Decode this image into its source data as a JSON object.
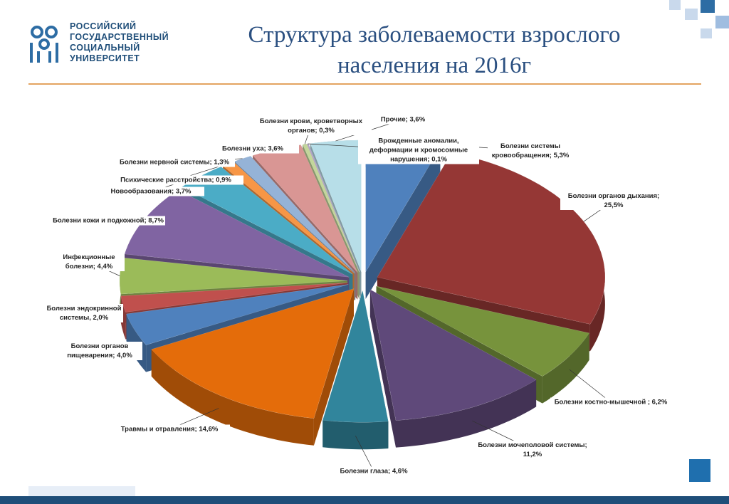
{
  "logo": {
    "lines": [
      "РОССИЙСКИЙ",
      "ГОСУДАРСТВЕННЫЙ",
      "СОЦИАЛЬНЫЙ",
      "УНИВЕРСИТЕТ"
    ]
  },
  "chart_data": {
    "type": "pie",
    "title": "Структура заболеваемости взрослого населения на 2016г",
    "categories": [
      "Болезни системы кровообращения;",
      "Болезни органов дыхания;",
      "Болезни костно-мышечной ;",
      "Болезни мочеполовой системы;",
      "Болезни глаза;",
      "Травмы и отравления;",
      "Болезни органов пищеварения;",
      "Болезни эндокринной системы,",
      "Инфекционные болезни;",
      "Болезни кожи и подкожной;",
      "Новообразования;",
      "Психические расстройства;",
      "Болезни нервной системы;",
      "Болезни уха;",
      "Болезни крови, кроветворных органов;",
      "Врожденные аномалии, деформации и хромосомные нарушения;",
      "Прочие;"
    ],
    "values": [
      5.3,
      25.5,
      6.2,
      11.2,
      4.6,
      14.6,
      4.0,
      2.0,
      4.4,
      8.7,
      3.7,
      0.9,
      1.3,
      3.6,
      0.3,
      0.1,
      3.6
    ],
    "value_labels": [
      "5,3%",
      "25,5%",
      "6,2%",
      "11,2%",
      "4,6%",
      "14,6%",
      "4,0%",
      "2,0%",
      "4,4%",
      "8,7%",
      "3,7%",
      "0,9%",
      "1,3%",
      "3,6%",
      "0,3%",
      "0,1%",
      "3,6%"
    ],
    "colors": [
      "#4f81bd",
      "#953735",
      "#77933c",
      "#5f497a",
      "#31859c",
      "#e46c0a",
      "#4f81bd",
      "#c0504d",
      "#9bbb59",
      "#8064a2",
      "#4bacc6",
      "#f79646",
      "#95b3d7",
      "#d99694",
      "#c3d69b",
      "#b2a1c7",
      "#b7dee8"
    ]
  }
}
